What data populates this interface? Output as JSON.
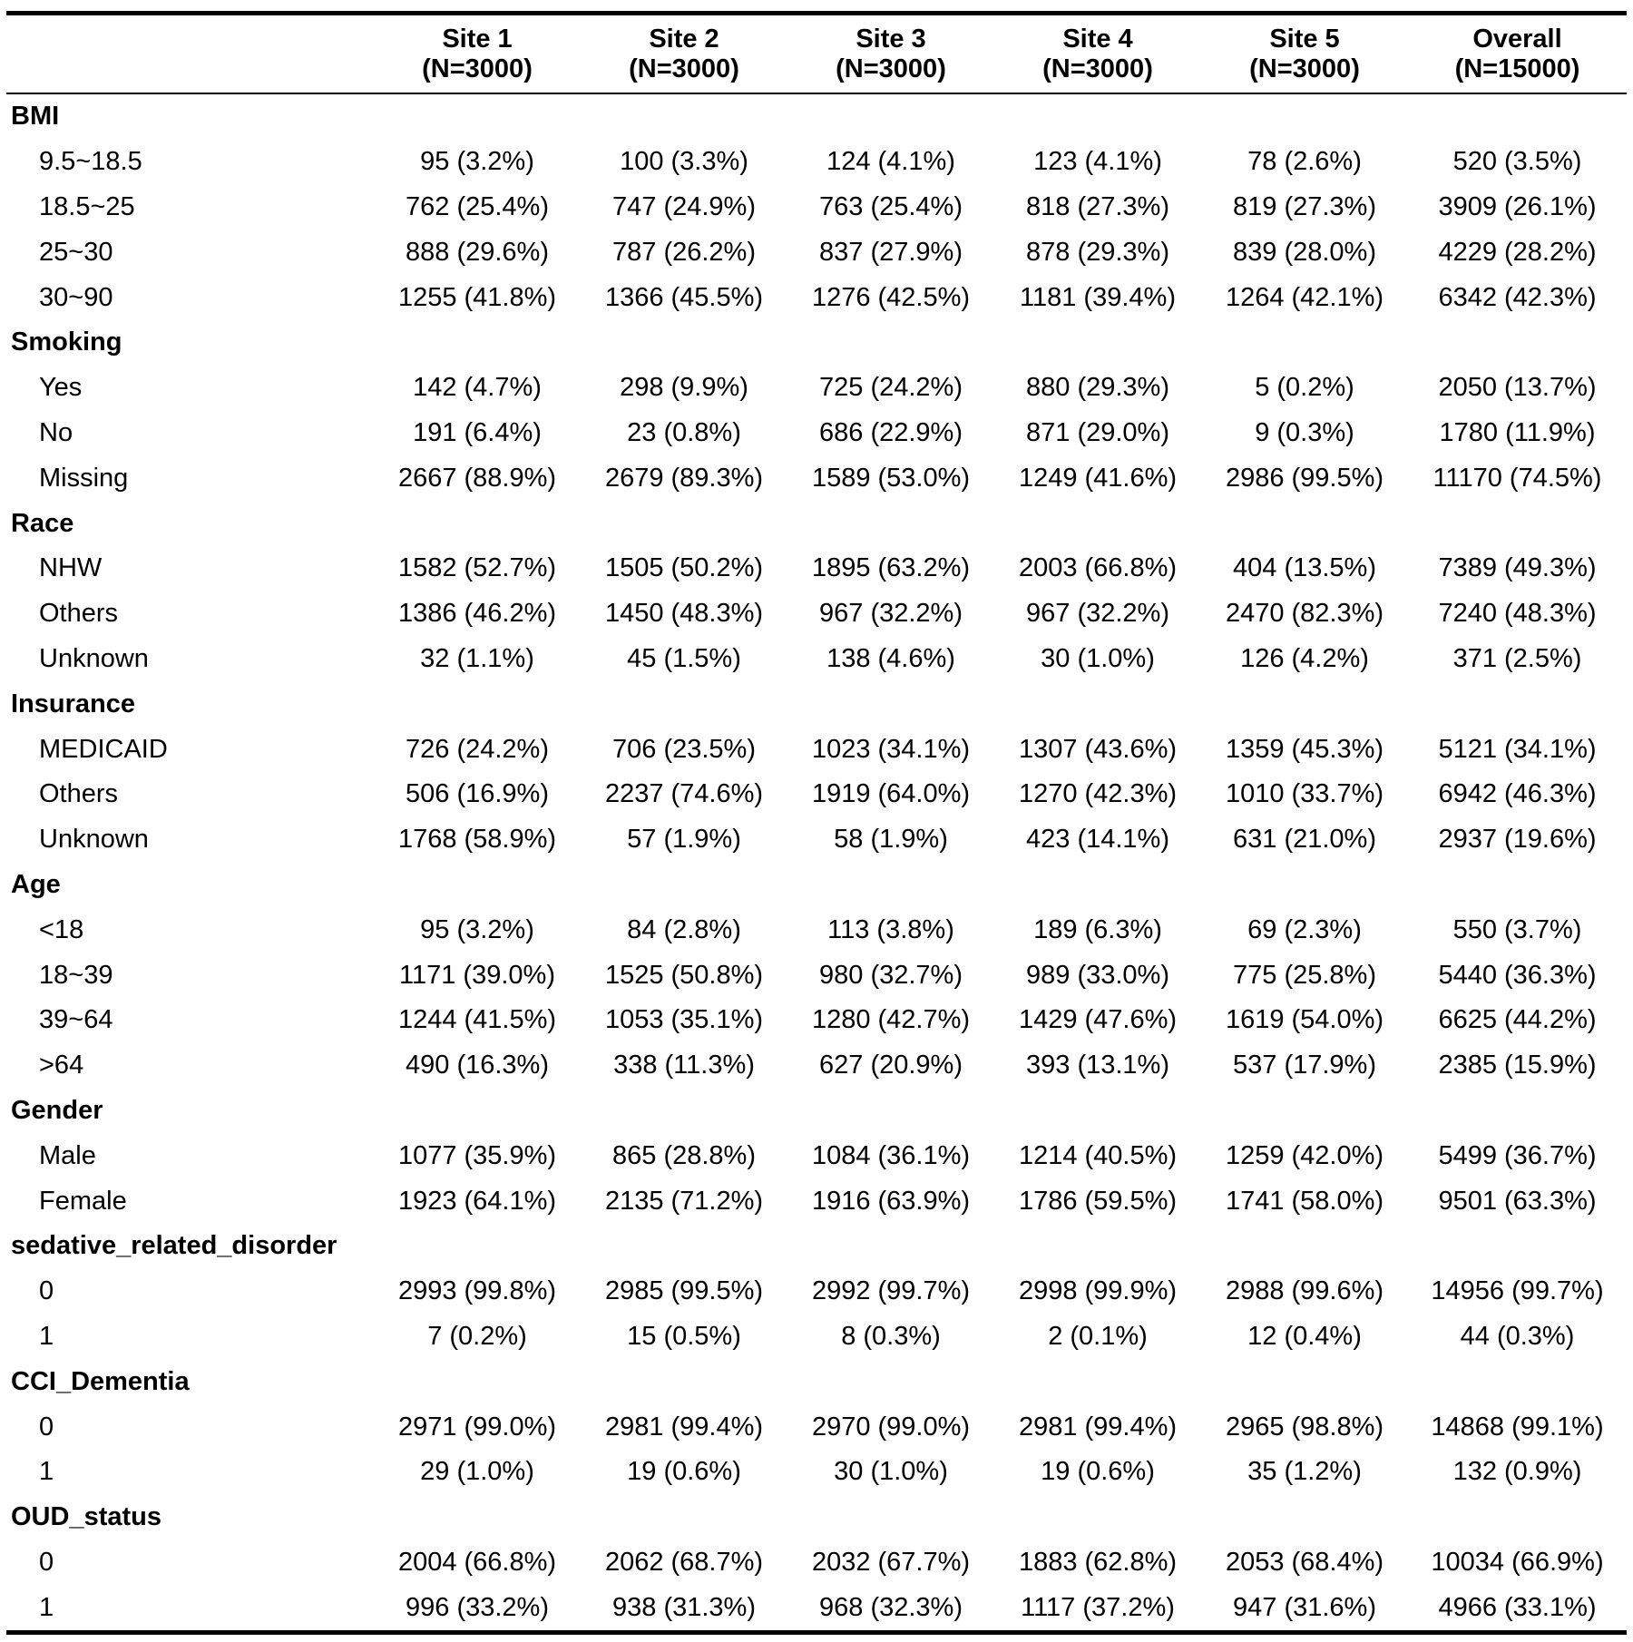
{
  "columns": [
    {
      "name": "Site 1",
      "n": "(N=3000)"
    },
    {
      "name": "Site 2",
      "n": "(N=3000)"
    },
    {
      "name": "Site 3",
      "n": "(N=3000)"
    },
    {
      "name": "Site 4",
      "n": "(N=3000)"
    },
    {
      "name": "Site 5",
      "n": "(N=3000)"
    },
    {
      "name": "Overall",
      "n": "(N=15000)"
    }
  ],
  "groups": [
    {
      "name": "BMI",
      "rows": [
        {
          "label": "9.5~18.5",
          "values": [
            "95 (3.2%)",
            "100 (3.3%)",
            "124 (4.1%)",
            "123 (4.1%)",
            "78 (2.6%)",
            "520 (3.5%)"
          ]
        },
        {
          "label": "18.5~25",
          "values": [
            "762 (25.4%)",
            "747 (24.9%)",
            "763 (25.4%)",
            "818 (27.3%)",
            "819 (27.3%)",
            "3909 (26.1%)"
          ]
        },
        {
          "label": "25~30",
          "values": [
            "888 (29.6%)",
            "787 (26.2%)",
            "837 (27.9%)",
            "878 (29.3%)",
            "839 (28.0%)",
            "4229 (28.2%)"
          ]
        },
        {
          "label": "30~90",
          "values": [
            "1255 (41.8%)",
            "1366 (45.5%)",
            "1276 (42.5%)",
            "1181 (39.4%)",
            "1264 (42.1%)",
            "6342 (42.3%)"
          ]
        }
      ]
    },
    {
      "name": "Smoking",
      "rows": [
        {
          "label": "Yes",
          "values": [
            "142 (4.7%)",
            "298 (9.9%)",
            "725 (24.2%)",
            "880 (29.3%)",
            "5 (0.2%)",
            "2050 (13.7%)"
          ]
        },
        {
          "label": "No",
          "values": [
            "191 (6.4%)",
            "23 (0.8%)",
            "686 (22.9%)",
            "871 (29.0%)",
            "9 (0.3%)",
            "1780 (11.9%)"
          ]
        },
        {
          "label": "Missing",
          "values": [
            "2667 (88.9%)",
            "2679 (89.3%)",
            "1589 (53.0%)",
            "1249 (41.6%)",
            "2986 (99.5%)",
            "11170 (74.5%)"
          ]
        }
      ]
    },
    {
      "name": "Race",
      "rows": [
        {
          "label": "NHW",
          "values": [
            "1582 (52.7%)",
            "1505 (50.2%)",
            "1895 (63.2%)",
            "2003 (66.8%)",
            "404 (13.5%)",
            "7389 (49.3%)"
          ]
        },
        {
          "label": "Others",
          "values": [
            "1386 (46.2%)",
            "1450 (48.3%)",
            "967 (32.2%)",
            "967 (32.2%)",
            "2470 (82.3%)",
            "7240 (48.3%)"
          ]
        },
        {
          "label": "Unknown",
          "values": [
            "32 (1.1%)",
            "45 (1.5%)",
            "138 (4.6%)",
            "30 (1.0%)",
            "126 (4.2%)",
            "371 (2.5%)"
          ]
        }
      ]
    },
    {
      "name": "Insurance",
      "rows": [
        {
          "label": "MEDICAID",
          "values": [
            "726 (24.2%)",
            "706 (23.5%)",
            "1023 (34.1%)",
            "1307 (43.6%)",
            "1359 (45.3%)",
            "5121 (34.1%)"
          ]
        },
        {
          "label": "Others",
          "values": [
            "506 (16.9%)",
            "2237 (74.6%)",
            "1919 (64.0%)",
            "1270 (42.3%)",
            "1010 (33.7%)",
            "6942 (46.3%)"
          ]
        },
        {
          "label": "Unknown",
          "values": [
            "1768 (58.9%)",
            "57 (1.9%)",
            "58 (1.9%)",
            "423 (14.1%)",
            "631 (21.0%)",
            "2937 (19.6%)"
          ]
        }
      ]
    },
    {
      "name": "Age",
      "rows": [
        {
          "label": "<18",
          "values": [
            "95 (3.2%)",
            "84 (2.8%)",
            "113 (3.8%)",
            "189 (6.3%)",
            "69 (2.3%)",
            "550 (3.7%)"
          ]
        },
        {
          "label": "18~39",
          "values": [
            "1171 (39.0%)",
            "1525 (50.8%)",
            "980 (32.7%)",
            "989 (33.0%)",
            "775 (25.8%)",
            "5440 (36.3%)"
          ]
        },
        {
          "label": "39~64",
          "values": [
            "1244 (41.5%)",
            "1053 (35.1%)",
            "1280 (42.7%)",
            "1429 (47.6%)",
            "1619 (54.0%)",
            "6625 (44.2%)"
          ]
        },
        {
          "label": ">64",
          "values": [
            "490 (16.3%)",
            "338 (11.3%)",
            "627 (20.9%)",
            "393 (13.1%)",
            "537 (17.9%)",
            "2385 (15.9%)"
          ]
        }
      ]
    },
    {
      "name": "Gender",
      "rows": [
        {
          "label": "Male",
          "values": [
            "1077 (35.9%)",
            "865 (28.8%)",
            "1084 (36.1%)",
            "1214 (40.5%)",
            "1259 (42.0%)",
            "5499 (36.7%)"
          ]
        },
        {
          "label": "Female",
          "values": [
            "1923 (64.1%)",
            "2135 (71.2%)",
            "1916 (63.9%)",
            "1786 (59.5%)",
            "1741 (58.0%)",
            "9501 (63.3%)"
          ]
        }
      ]
    },
    {
      "name": "sedative_related_disorder",
      "rows": [
        {
          "label": "0",
          "values": [
            "2993 (99.8%)",
            "2985 (99.5%)",
            "2992 (99.7%)",
            "2998 (99.9%)",
            "2988 (99.6%)",
            "14956 (99.7%)"
          ]
        },
        {
          "label": "1",
          "values": [
            "7 (0.2%)",
            "15 (0.5%)",
            "8 (0.3%)",
            "2 (0.1%)",
            "12 (0.4%)",
            "44 (0.3%)"
          ]
        }
      ]
    },
    {
      "name": "CCI_Dementia",
      "rows": [
        {
          "label": "0",
          "values": [
            "2971 (99.0%)",
            "2981 (99.4%)",
            "2970 (99.0%)",
            "2981 (99.4%)",
            "2965 (98.8%)",
            "14868 (99.1%)"
          ]
        },
        {
          "label": "1",
          "values": [
            "29 (1.0%)",
            "19 (0.6%)",
            "30 (1.0%)",
            "19 (0.6%)",
            "35 (1.2%)",
            "132 (0.9%)"
          ]
        }
      ]
    },
    {
      "name": "OUD_status",
      "rows": [
        {
          "label": "0",
          "values": [
            "2004 (66.8%)",
            "2062 (68.7%)",
            "2032 (67.7%)",
            "1883 (62.8%)",
            "2053 (68.4%)",
            "10034 (66.9%)"
          ]
        },
        {
          "label": "1",
          "values": [
            "996 (33.2%)",
            "938 (31.3%)",
            "968 (32.3%)",
            "1117 (37.2%)",
            "947 (31.6%)",
            "4966 (33.1%)"
          ]
        }
      ]
    }
  ]
}
